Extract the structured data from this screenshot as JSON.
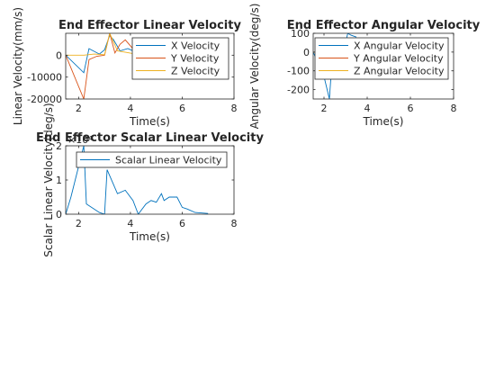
{
  "chart_data": [
    {
      "type": "line",
      "title": "End Effector Linear Velocity",
      "xlabel": "Time(s)",
      "ylabel": "Linear Velocity(mm/s)",
      "xlim": [
        1.5,
        8
      ],
      "ylim": [
        -20000,
        10000
      ],
      "xticks": [
        2,
        4,
        6,
        8
      ],
      "xtick_labels": [
        "2",
        "4",
        "6",
        "8"
      ],
      "yticks": [
        -20000,
        -10000,
        0
      ],
      "ytick_labels": [
        "-20000",
        "-10000",
        "0"
      ],
      "grid": false,
      "legend_position": "top-right",
      "series": [
        {
          "name": "X Velocity",
          "color": "#0072BD",
          "x": [
            1.5,
            2.2,
            2.4,
            2.8,
            3.0,
            3.2,
            3.35,
            3.6,
            3.9,
            4.2
          ],
          "y": [
            0,
            -8000,
            3000,
            500,
            2500,
            9000,
            7000,
            2000,
            3000,
            1500
          ]
        },
        {
          "name": "Y Velocity",
          "color": "#D95319",
          "x": [
            1.5,
            2.2,
            2.4,
            2.7,
            3.0,
            3.2,
            3.4,
            3.6,
            3.8,
            4.2
          ],
          "y": [
            0,
            -20000,
            -2000,
            -500,
            0,
            10000,
            1000,
            5000,
            7000,
            1500
          ]
        },
        {
          "name": "Z Velocity",
          "color": "#EDB120",
          "x": [
            1.5,
            2.2,
            2.6,
            3.0,
            3.2,
            3.5,
            4.2
          ],
          "y": [
            0,
            0,
            500,
            200,
            10000,
            2000,
            500
          ]
        }
      ]
    },
    {
      "type": "line",
      "title": "End Effector Angular Velocity",
      "xlabel": "Time(s)",
      "ylabel": "Angular Velocity(deg/s)",
      "xlim": [
        1.5,
        8
      ],
      "ylim": [
        -250,
        100
      ],
      "xticks": [
        2,
        4,
        6,
        8
      ],
      "xtick_labels": [
        "2",
        "4",
        "6",
        "8"
      ],
      "yticks": [
        -200,
        -100,
        0,
        100
      ],
      "ytick_labels": [
        "-200",
        "-100",
        "0",
        "100"
      ],
      "grid": false,
      "legend_position": "top-right",
      "series": [
        {
          "name": "X Angular Velocity",
          "color": "#0072BD",
          "x": [
            1.5,
            2.0,
            2.25,
            2.4,
            2.6,
            2.9,
            3.1,
            3.25,
            3.5
          ],
          "y": [
            0,
            -130,
            -250,
            0,
            -10,
            0,
            100,
            90,
            80
          ]
        },
        {
          "name": "Y Angular Velocity",
          "color": "#D95319",
          "x": [
            1.5,
            2.2,
            2.6,
            3.0,
            3.3,
            3.5
          ],
          "y": [
            0,
            0,
            -5,
            5,
            0,
            0
          ]
        },
        {
          "name": "Z Angular Velocity",
          "color": "#EDB120",
          "x": [
            1.5,
            2.2,
            2.6,
            3.0,
            3.5
          ],
          "y": [
            0,
            0,
            10,
            0,
            0
          ]
        }
      ]
    },
    {
      "type": "line",
      "title": "End Effector Scalar Linear Velocity",
      "xlabel": "Time(s)",
      "ylabel": "Scalar Linear Velocity(deg/s)",
      "exponent_label": "×10⁴",
      "xlim": [
        1.5,
        8
      ],
      "ylim": [
        0,
        2
      ],
      "xticks": [
        2,
        4,
        6,
        8
      ],
      "xtick_labels": [
        "2",
        "4",
        "6",
        "8"
      ],
      "yticks": [
        0,
        1,
        2
      ],
      "ytick_labels": [
        "0",
        "1",
        "2"
      ],
      "grid": false,
      "legend_position": "top-right",
      "series": [
        {
          "name": "Scalar Linear Velocity",
          "color": "#0072BD",
          "x": [
            1.5,
            1.7,
            2.2,
            2.3,
            2.8,
            3.0,
            3.1,
            3.5,
            3.8,
            4.1,
            4.3,
            4.6,
            4.8,
            5.0,
            5.2,
            5.3,
            5.5,
            5.8,
            6.0,
            6.2,
            6.5,
            7.0
          ],
          "y": [
            0,
            0.5,
            2.0,
            0.3,
            0.05,
            0.0,
            1.3,
            0.6,
            0.7,
            0.4,
            0.0,
            0.3,
            0.4,
            0.35,
            0.6,
            0.4,
            0.5,
            0.5,
            0.2,
            0.15,
            0.05,
            0.02
          ]
        }
      ]
    }
  ]
}
